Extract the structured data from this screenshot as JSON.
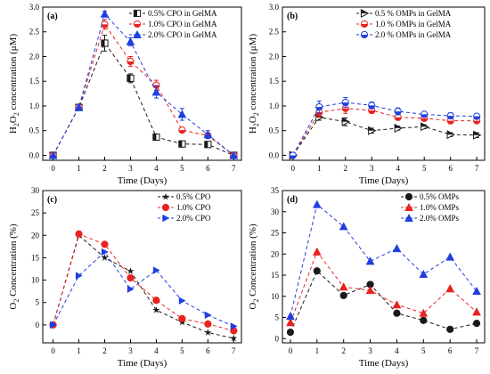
{
  "colors": {
    "black": "#1a1a1a",
    "red": "#e8231f",
    "blue": "#1f3fe0",
    "axis": "#000000"
  },
  "chart_data": [
    {
      "type": "line",
      "panel_label": "(a)",
      "xlabel": "Time (Days)",
      "ylabel_main": "H",
      "ylabel_sub1": "2",
      "ylabel_mid": "O",
      "ylabel_sub2": "2",
      "ylabel_tail": " concentration (μM)",
      "x": [
        0,
        1,
        2,
        3,
        4,
        5,
        6,
        7
      ],
      "xlim": [
        -0.4,
        7.3
      ],
      "ylim": [
        -0.1,
        3.0
      ],
      "xticks": [
        "0",
        "1",
        "2",
        "3",
        "4",
        "5",
        "6",
        "7"
      ],
      "yticks": [
        "0.0",
        "0.5",
        "1.0",
        "1.5",
        "2.0",
        "2.5",
        "3.0"
      ],
      "ytick_values": [
        0.0,
        0.5,
        1.0,
        1.5,
        2.0,
        2.5,
        3.0
      ],
      "legend_position": "top-right",
      "series": [
        {
          "name": "0.5% CPO in GelMA",
          "color": "black",
          "marker": "half-square",
          "values": [
            0.0,
            0.97,
            2.27,
            1.56,
            0.37,
            0.23,
            0.22,
            0.0
          ],
          "errors": [
            0.0,
            0.06,
            0.16,
            0.09,
            0.03,
            0.02,
            0.03,
            0.0
          ]
        },
        {
          "name": "1.0% CPO in GelMA",
          "color": "red",
          "marker": "half-circle",
          "values": [
            0.0,
            0.98,
            2.65,
            1.9,
            1.42,
            0.51,
            0.4,
            0.0
          ],
          "errors": [
            0.0,
            0.05,
            0.1,
            0.1,
            0.1,
            0.04,
            0.05,
            0.0
          ]
        },
        {
          "name": "2.0% CPO in GelMA",
          "color": "blue",
          "marker": "triangle-up",
          "values": [
            0.0,
            0.97,
            2.86,
            2.3,
            1.28,
            0.83,
            0.42,
            0.0
          ],
          "errors": [
            0.0,
            0.05,
            0.06,
            0.08,
            0.12,
            0.12,
            0.08,
            0.0
          ]
        }
      ]
    },
    {
      "type": "line",
      "panel_label": "(b)",
      "xlabel": "Time (Days)",
      "ylabel_main": "H",
      "ylabel_sub1": "2",
      "ylabel_mid": "O",
      "ylabel_sub2": "2",
      "ylabel_tail": " concentration (μM)",
      "x": [
        0,
        1,
        2,
        3,
        4,
        5,
        6,
        7
      ],
      "xlim": [
        -0.4,
        7.3
      ],
      "ylim": [
        -0.1,
        3.0
      ],
      "xticks": [
        "0",
        "1",
        "2",
        "3",
        "4",
        "5",
        "6",
        "7"
      ],
      "yticks": [
        "0.0",
        "0.5",
        "1.0",
        "1.5",
        "2.0",
        "2.5",
        "3.0"
      ],
      "ytick_values": [
        0.0,
        0.5,
        1.0,
        1.5,
        2.0,
        2.5,
        3.0
      ],
      "legend_position": "top-right",
      "series": [
        {
          "name": "0.5 % OMPs in GelMA",
          "color": "black",
          "marker": "half-triangle-right",
          "values": [
            0.0,
            0.77,
            0.68,
            0.5,
            0.55,
            0.58,
            0.42,
            0.41
          ],
          "errors": [
            0.0,
            0.06,
            0.08,
            0.05,
            0.04,
            0.04,
            0.04,
            0.05
          ]
        },
        {
          "name": "1.0 % OMPs in GelMA",
          "color": "red",
          "marker": "half-circle",
          "values": [
            0.0,
            0.87,
            0.95,
            0.91,
            0.77,
            0.75,
            0.7,
            0.7
          ],
          "errors": [
            0.0,
            0.1,
            0.1,
            0.06,
            0.06,
            0.05,
            0.06,
            0.05
          ]
        },
        {
          "name": "2.0 % OMPs in GelMA",
          "color": "blue",
          "marker": "half-circle-blue",
          "values": [
            0.0,
            0.98,
            1.07,
            1.01,
            0.89,
            0.83,
            0.8,
            0.79
          ],
          "errors": [
            0.0,
            0.12,
            0.1,
            0.07,
            0.07,
            0.05,
            0.06,
            0.04
          ]
        }
      ]
    },
    {
      "type": "line",
      "panel_label": "(c)",
      "xlabel": "Time (Days)",
      "ylabel_main": "O",
      "ylabel_sub1": "2",
      "ylabel_mid": "",
      "ylabel_sub2": "",
      "ylabel_tail": " Concentration (%)",
      "x": [
        0,
        1,
        2,
        3,
        4,
        5,
        6,
        7
      ],
      "xlim": [
        -0.4,
        7.3
      ],
      "ylim": [
        -4,
        30
      ],
      "xticks": [
        "0",
        "1",
        "2",
        "3",
        "4",
        "5",
        "6",
        "7"
      ],
      "yticks": [
        "0",
        "5",
        "10",
        "15",
        "20",
        "25",
        "30"
      ],
      "ytick_values": [
        0,
        5,
        10,
        15,
        20,
        25,
        30
      ],
      "legend_position": "top-right",
      "series": [
        {
          "name": "0.5% CPO",
          "color": "black",
          "marker": "star",
          "values": [
            0.0,
            20.0,
            15.0,
            12.0,
            3.3,
            0.6,
            -1.7,
            -3.0
          ]
        },
        {
          "name": "1.0% CPO",
          "color": "red",
          "marker": "circle",
          "values": [
            0.0,
            20.3,
            18.0,
            10.5,
            5.5,
            1.4,
            0.2,
            -1.3
          ]
        },
        {
          "name": "2.0% CPO",
          "color": "blue",
          "marker": "triangle-right",
          "values": [
            0.0,
            11.0,
            16.3,
            8.0,
            12.2,
            5.4,
            2.2,
            -0.3
          ]
        }
      ]
    },
    {
      "type": "line",
      "panel_label": "(d)",
      "xlabel": "Time (Days)",
      "ylabel_main": "O",
      "ylabel_sub1": "2",
      "ylabel_mid": "",
      "ylabel_sub2": "",
      "ylabel_tail": " Concentration (%)",
      "x": [
        0,
        1,
        2,
        3,
        4,
        5,
        6,
        7
      ],
      "xlim": [
        -0.3,
        7.3
      ],
      "ylim": [
        -1,
        35
      ],
      "xticks": [
        "0",
        "1",
        "2",
        "3",
        "4",
        "5",
        "6",
        "7"
      ],
      "yticks": [
        "0",
        "5",
        "10",
        "15",
        "20",
        "25",
        "30",
        "35"
      ],
      "ytick_values": [
        0,
        5,
        10,
        15,
        20,
        25,
        30,
        35
      ],
      "legend_position": "top-right",
      "series": [
        {
          "name": "0.5% OMPs",
          "color": "black",
          "marker": "circle",
          "values": [
            1.5,
            16.0,
            10.2,
            12.8,
            6.0,
            4.3,
            2.2,
            3.6
          ]
        },
        {
          "name": "1.0% OMPs",
          "color": "red",
          "marker": "triangle-up",
          "values": [
            3.8,
            20.5,
            12.2,
            11.4,
            8.0,
            6.0,
            11.8,
            6.3
          ]
        },
        {
          "name": "2.0% OMPs",
          "color": "blue",
          "marker": "triangle-up",
          "values": [
            5.3,
            31.7,
            26.5,
            18.3,
            21.3,
            15.2,
            19.3,
            11.2
          ]
        }
      ]
    }
  ]
}
